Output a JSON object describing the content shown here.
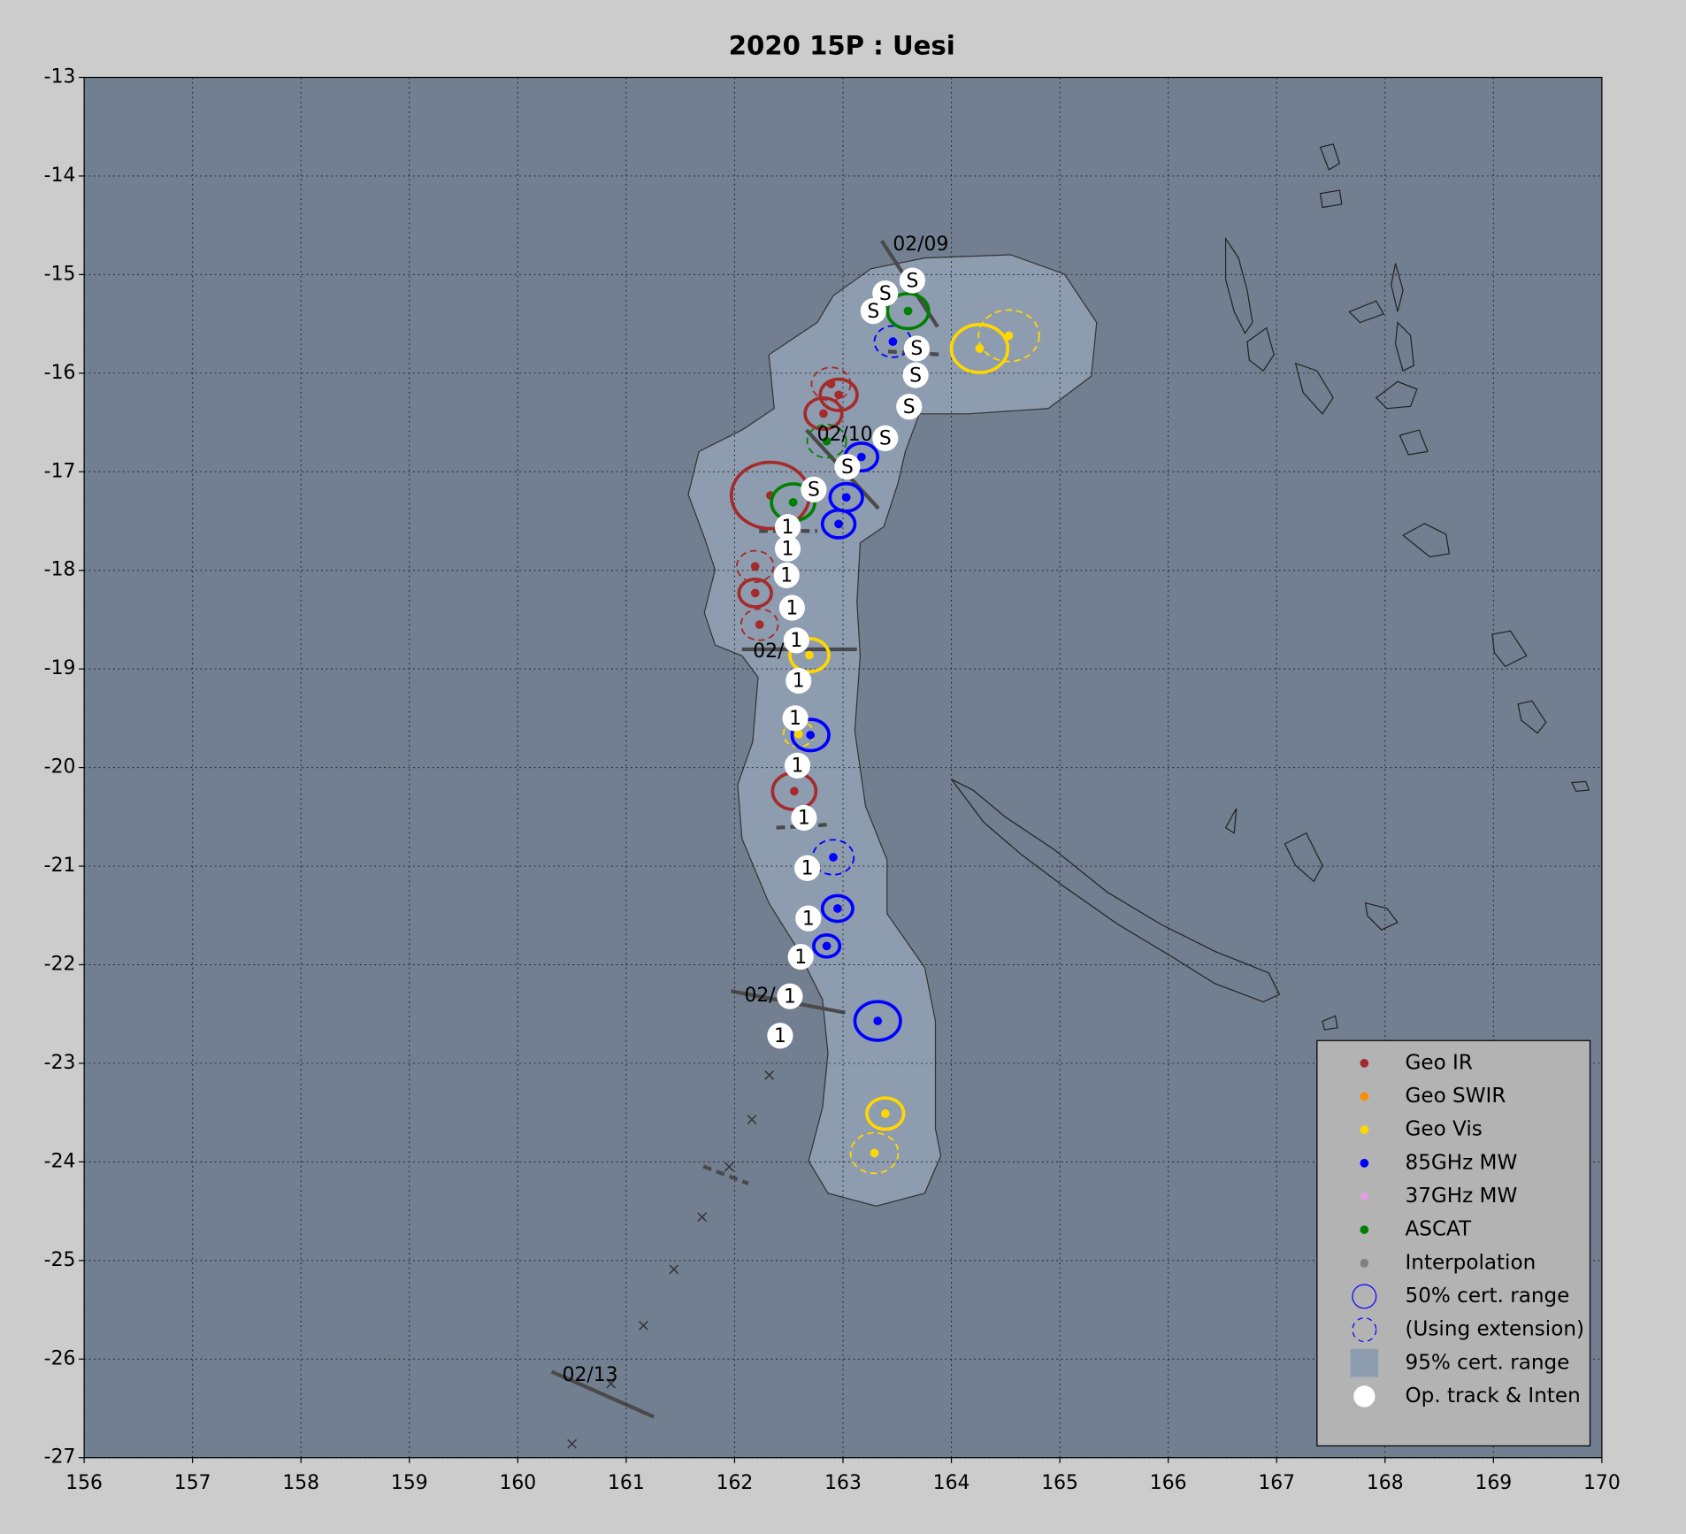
{
  "chart_data": {
    "type": "track",
    "title": "2020  15P :  Uesi",
    "xlim": [
      156,
      170
    ],
    "xticks": [
      156,
      157,
      158,
      159,
      160,
      161,
      162,
      163,
      164,
      165,
      166,
      167,
      168,
      169,
      170
    ],
    "ylim": [
      -27,
      -13
    ],
    "yticks": [
      -27,
      -26,
      -25,
      -24,
      -23,
      -22,
      -21,
      -20,
      -19,
      -18,
      -17,
      -16,
      -15,
      -14,
      -13
    ],
    "grid": true,
    "fixes": [
      {
        "name": "Geo IR",
        "color": "#a52a2a",
        "x": [
          162.89,
          162.96,
          162.82,
          162.33,
          162.19,
          162.19,
          162.23,
          162.55
        ],
        "y": [
          -16.11,
          -16.22,
          -16.41,
          -17.24,
          -17.96,
          -18.23,
          -18.55,
          -20.24
        ],
        "r": [
          0.18,
          0.17,
          0.17,
          0.36,
          0.17,
          0.15,
          0.17,
          0.2
        ],
        "extension": [
          true,
          false,
          false,
          false,
          true,
          false,
          true,
          false
        ]
      },
      {
        "name": "Geo SWIR",
        "color": "#ff8c00",
        "x": [],
        "y": [],
        "r": [],
        "extension": []
      },
      {
        "name": "Geo Vis",
        "color": "#ffd700",
        "x": [
          164.26,
          164.53,
          162.69,
          162.59,
          163.39,
          163.29
        ],
        "y": [
          -15.75,
          -15.62,
          -18.86,
          -19.66,
          -23.51,
          -23.91
        ],
        "r": [
          0.26,
          0.28,
          0.18,
          0.14,
          0.17,
          0.22
        ],
        "extension": [
          false,
          true,
          false,
          true,
          false,
          true
        ]
      },
      {
        "name": "85GHz MW",
        "color": "#0000ff",
        "x": [
          163.46,
          163.17,
          163.03,
          162.96,
          162.7,
          162.91,
          162.95,
          162.85,
          163.32
        ],
        "y": [
          -15.68,
          -16.85,
          -17.26,
          -17.53,
          -19.67,
          -20.91,
          -21.43,
          -21.81,
          -22.57
        ],
        "r": [
          0.17,
          0.15,
          0.15,
          0.15,
          0.17,
          0.19,
          0.14,
          0.12,
          0.21
        ],
        "extension": [
          true,
          false,
          false,
          false,
          false,
          true,
          false,
          false,
          false
        ]
      },
      {
        "name": "37GHz MW",
        "color": "#dda0dd",
        "x": [],
        "y": [],
        "r": [],
        "extension": []
      },
      {
        "name": "ASCAT",
        "color": "#008000",
        "x": [
          163.6,
          162.85,
          162.54
        ],
        "y": [
          -15.37,
          -16.69,
          -17.31
        ],
        "r": [
          0.19,
          0.18,
          0.2
        ],
        "extension": [
          false,
          true,
          false
        ]
      }
    ],
    "interpolation": {
      "name": "Interpolation",
      "color": "#808080",
      "x": [
        162.32,
        162.16,
        161.95,
        161.7,
        161.44,
        161.16,
        160.86,
        160.5
      ],
      "y": [
        -23.12,
        -23.57,
        -24.05,
        -24.56,
        -25.09,
        -25.66,
        -26.25,
        -26.86
      ]
    },
    "track": {
      "name": "Op. track & Inten",
      "x": [
        163.64,
        163.39,
        163.28,
        163.68,
        163.67,
        163.61,
        163.39,
        163.04,
        162.73,
        162.49,
        162.49,
        162.48,
        162.53,
        162.57,
        162.59,
        162.56,
        162.58,
        162.64,
        162.67,
        162.68,
        162.61,
        162.51,
        162.42
      ],
      "y": [
        -15.06,
        -15.19,
        -15.37,
        -15.75,
        -16.02,
        -16.34,
        -16.66,
        -16.95,
        -17.18,
        -17.56,
        -17.78,
        -18.05,
        -18.38,
        -18.71,
        -19.12,
        -19.5,
        -19.98,
        -20.51,
        -21.02,
        -21.53,
        -21.92,
        -22.32,
        -22.72
      ],
      "labels": [
        "S",
        "S",
        "S",
        "S",
        "S",
        "S",
        "S",
        "S",
        "S",
        "1",
        "1",
        "1",
        "1",
        "1",
        "1",
        "1",
        "1",
        "1",
        "1",
        "1",
        "1",
        "1",
        "1"
      ]
    },
    "annotations": [
      {
        "text": "02/09",
        "x": 163.46,
        "y": -14.7
      },
      {
        "text": "02/10",
        "x": 162.76,
        "y": -16.63
      },
      {
        "text": "02/",
        "x": 162.17,
        "y": -18.83
      },
      {
        "text": "02/",
        "x": 162.09,
        "y": -22.32
      },
      {
        "text": "02/13",
        "x": 160.41,
        "y": -26.17
      }
    ],
    "legend": {
      "position": "lower right",
      "labels": [
        "50% cert. range",
        "(Using extension)",
        "95% cert. range"
      ]
    }
  }
}
